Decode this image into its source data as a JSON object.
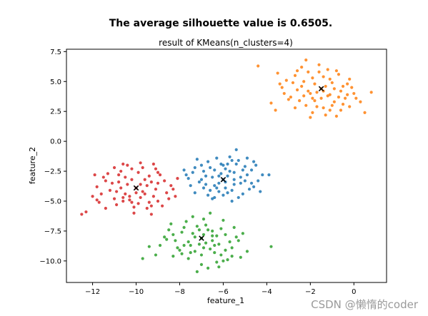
{
  "page": {
    "watermark": "CSDN @懒惰的coder"
  },
  "chart_data": {
    "type": "scatter",
    "suptitle": "The average silhouette value is 0.6505.",
    "title": "result of KMeans(n_clusters=4)",
    "xlabel": "feature_1",
    "ylabel": "feature_2",
    "xlim": [
      -13.2,
      1.5
    ],
    "ylim": [
      -11.8,
      7.7
    ],
    "xticks": [
      -12,
      -10,
      -8,
      -6,
      -4,
      -2,
      0
    ],
    "yticks": [
      -10.0,
      -7.5,
      -5.0,
      -2.5,
      0.0,
      2.5,
      5.0,
      7.5
    ],
    "xtick_labels": [
      "−12",
      "−10",
      "−8",
      "−6",
      "−4",
      "−2",
      "0"
    ],
    "ytick_labels": [
      "−10.0",
      "−7.5",
      "−5.0",
      "−2.5",
      "0.0",
      "2.5",
      "5.0",
      "7.5"
    ],
    "grid": false,
    "legend": "none",
    "series": [
      {
        "color": "#1f77b4",
        "center": [
          -6.0,
          -3.2
        ],
        "points": [
          [
            -6.0,
            -3.2
          ],
          [
            -5.5,
            -2.6
          ],
          [
            -6.4,
            -3.7
          ],
          [
            -5.2,
            -3.5
          ],
          [
            -6.8,
            -2.9
          ],
          [
            -5.8,
            -1.9
          ],
          [
            -6.2,
            -4.2
          ],
          [
            -4.9,
            -2.8
          ],
          [
            -7.1,
            -3.4
          ],
          [
            -5.6,
            -4.1
          ],
          [
            -6.6,
            -2.2
          ],
          [
            -5.3,
            -1.6
          ],
          [
            -4.6,
            -3.8
          ],
          [
            -7.4,
            -2.6
          ],
          [
            -6.1,
            -2.7
          ],
          [
            -5.9,
            -3.9
          ],
          [
            -6.9,
            -3.9
          ],
          [
            -5.1,
            -4.4
          ],
          [
            -7.6,
            -3.1
          ],
          [
            -4.4,
            -3.3
          ],
          [
            -6.3,
            -1.4
          ],
          [
            -5.4,
            -0.7
          ],
          [
            -5.7,
            -1.3
          ],
          [
            -6.5,
            -4.8
          ],
          [
            -7.0,
            -2.0
          ],
          [
            -5.0,
            -2.1
          ],
          [
            -4.7,
            -2.4
          ],
          [
            -6.7,
            -1.7
          ],
          [
            -7.8,
            -2.4
          ],
          [
            -7.3,
            -4.3
          ],
          [
            -5.6,
            -5.0
          ],
          [
            -4.2,
            -2.8
          ],
          [
            -3.9,
            -2.8
          ],
          [
            -6.0,
            -4.5
          ],
          [
            -6.4,
            -2.4
          ],
          [
            -5.2,
            -3.0
          ],
          [
            -5.8,
            -2.9
          ],
          [
            -6.2,
            -3.5
          ],
          [
            -5.5,
            -3.6
          ],
          [
            -6.8,
            -3.6
          ],
          [
            -4.8,
            -4.0
          ],
          [
            -7.2,
            -1.5
          ],
          [
            -6.5,
            -3.0
          ],
          [
            -5.9,
            -2.3
          ],
          [
            -5.3,
            -4.7
          ],
          [
            -6.6,
            -4.1
          ],
          [
            -7.5,
            -3.7
          ],
          [
            -4.5,
            -2.0
          ],
          [
            -5.0,
            -3.3
          ],
          [
            -6.3,
            -3.9
          ],
          [
            -5.7,
            -2.5
          ],
          [
            -6.1,
            -1.9
          ],
          [
            -4.9,
            -1.4
          ],
          [
            -7.7,
            -2.8
          ],
          [
            -6.9,
            -2.5
          ],
          [
            -5.4,
            -1.9
          ],
          [
            -5.8,
            -4.3
          ],
          [
            -4.3,
            -4.2
          ],
          [
            -6.0,
            -2.0
          ],
          [
            -6.7,
            -4.5
          ],
          [
            -5.1,
            -2.4
          ],
          [
            -7.0,
            -3.2
          ],
          [
            -5.5,
            -3.2
          ],
          [
            -6.2,
            -2.9
          ],
          [
            -4.7,
            -3.5
          ],
          [
            -5.9,
            -3.4
          ],
          [
            -6.4,
            -4.7
          ],
          [
            -7.3,
            -2.2
          ],
          [
            -5.6,
            -1.6
          ],
          [
            -4.6,
            -1.7
          ]
        ]
      },
      {
        "color": "#ff7f0e",
        "center": [
          -1.5,
          4.4
        ],
        "points": [
          [
            -1.5,
            4.4
          ],
          [
            -1.0,
            4.9
          ],
          [
            -2.0,
            4.0
          ],
          [
            -1.2,
            3.8
          ],
          [
            -2.3,
            5.0
          ],
          [
            -0.6,
            4.2
          ],
          [
            -1.8,
            3.4
          ],
          [
            -0.9,
            3.3
          ],
          [
            -2.6,
            4.3
          ],
          [
            -0.3,
            4.8
          ],
          [
            -1.4,
            5.4
          ],
          [
            -2.1,
            5.8
          ],
          [
            -0.4,
            3.6
          ],
          [
            -2.9,
            3.7
          ],
          [
            -1.7,
            2.9
          ],
          [
            -1.1,
            2.6
          ],
          [
            -0.2,
            2.9
          ],
          [
            -3.1,
            5.1
          ],
          [
            -2.4,
            6.2
          ],
          [
            -1.6,
            6.4
          ],
          [
            -0.7,
            5.6
          ],
          [
            0.0,
            4.0
          ],
          [
            -3.3,
            4.5
          ],
          [
            -2.7,
            2.8
          ],
          [
            -1.9,
            2.4
          ],
          [
            -1.3,
            2.2
          ],
          [
            -0.5,
            3.1
          ],
          [
            -3.5,
            5.7
          ],
          [
            -2.2,
            6.8
          ],
          [
            0.3,
            3.3
          ],
          [
            0.5,
            2.4
          ],
          [
            0.8,
            4.1
          ],
          [
            -4.4,
            6.3
          ],
          [
            -3.8,
            3.2
          ],
          [
            -2.0,
            2.0
          ],
          [
            -0.8,
            2.1
          ],
          [
            -3.6,
            2.6
          ],
          [
            -1.5,
            3.6
          ],
          [
            -1.3,
            4.6
          ],
          [
            -1.8,
            4.8
          ],
          [
            -0.9,
            4.4
          ],
          [
            -2.5,
            3.4
          ],
          [
            -1.1,
            5.2
          ],
          [
            -2.8,
            4.9
          ],
          [
            -0.2,
            5.2
          ],
          [
            -1.6,
            5.8
          ],
          [
            -2.2,
            3.0
          ],
          [
            -0.6,
            2.6
          ],
          [
            -3.0,
            3.5
          ],
          [
            -1.0,
            3.0
          ],
          [
            -0.1,
            4.5
          ],
          [
            -2.4,
            4.6
          ],
          [
            -1.9,
            5.3
          ],
          [
            -0.3,
            3.9
          ],
          [
            -2.7,
            5.5
          ],
          [
            -3.2,
            4.0
          ],
          [
            -1.4,
            2.8
          ],
          [
            -0.8,
            5.9
          ],
          [
            -2.1,
            4.2
          ],
          [
            -1.2,
            6.0
          ],
          [
            -0.5,
            4.6
          ],
          [
            -1.7,
            4.1
          ],
          [
            -2.6,
            5.9
          ],
          [
            0.1,
            3.6
          ],
          [
            -3.4,
            4.8
          ],
          [
            -1.4,
            4.2
          ],
          [
            -1.1,
            3.9
          ],
          [
            -2.3,
            3.8
          ],
          [
            -0.7,
            3.7
          ],
          [
            -1.9,
            3.6
          ]
        ]
      },
      {
        "color": "#2ca02c",
        "center": [
          -7.0,
          -8.1
        ],
        "points": [
          [
            -7.0,
            -8.1
          ],
          [
            -6.5,
            -7.5
          ],
          [
            -7.5,
            -8.7
          ],
          [
            -6.2,
            -8.6
          ],
          [
            -7.9,
            -7.6
          ],
          [
            -6.8,
            -7.0
          ],
          [
            -7.3,
            -9.2
          ],
          [
            -5.9,
            -7.8
          ],
          [
            -8.2,
            -8.3
          ],
          [
            -6.4,
            -9.3
          ],
          [
            -7.7,
            -6.7
          ],
          [
            -6.0,
            -6.6
          ],
          [
            -5.6,
            -8.9
          ],
          [
            -8.5,
            -7.4
          ],
          [
            -7.1,
            -7.4
          ],
          [
            -6.9,
            -8.9
          ],
          [
            -8.0,
            -9.1
          ],
          [
            -6.1,
            -9.5
          ],
          [
            -8.7,
            -8.0
          ],
          [
            -5.3,
            -8.3
          ],
          [
            -7.4,
            -6.3
          ],
          [
            -6.6,
            -6.0
          ],
          [
            -7.6,
            -9.8
          ],
          [
            -5.8,
            -9.9
          ],
          [
            -8.3,
            -9.6
          ],
          [
            -7.0,
            -10.3
          ],
          [
            -6.3,
            -10.1
          ],
          [
            -6.7,
            -10.6
          ],
          [
            -7.2,
            -10.9
          ],
          [
            -5.5,
            -7.2
          ],
          [
            -5.1,
            -7.7
          ],
          [
            -4.9,
            -9.2
          ],
          [
            -8.9,
            -8.7
          ],
          [
            -9.1,
            -9.5
          ],
          [
            -9.4,
            -8.8
          ],
          [
            -8.4,
            -6.9
          ],
          [
            -7.8,
            -7.2
          ],
          [
            -6.9,
            -6.5
          ],
          [
            -5.2,
            -9.7
          ],
          [
            -6.0,
            -10.0
          ],
          [
            -3.8,
            -8.8
          ],
          [
            -9.7,
            -9.8
          ],
          [
            -6.5,
            -8.3
          ],
          [
            -7.3,
            -8.0
          ],
          [
            -6.8,
            -8.5
          ],
          [
            -7.6,
            -8.4
          ],
          [
            -6.1,
            -7.3
          ],
          [
            -7.0,
            -9.5
          ],
          [
            -6.6,
            -9.0
          ],
          [
            -8.1,
            -8.9
          ],
          [
            -5.7,
            -8.4
          ],
          [
            -7.4,
            -7.7
          ],
          [
            -6.3,
            -7.9
          ],
          [
            -8.6,
            -8.2
          ],
          [
            -6.9,
            -7.8
          ],
          [
            -5.9,
            -9.1
          ],
          [
            -7.8,
            -8.7
          ],
          [
            -7.2,
            -7.1
          ],
          [
            -6.4,
            -8.7
          ],
          [
            -5.4,
            -8.0
          ],
          [
            -8.3,
            -7.8
          ],
          [
            -6.2,
            -10.5
          ],
          [
            -7.5,
            -9.3
          ],
          [
            -6.7,
            -7.4
          ],
          [
            -5.6,
            -9.6
          ],
          [
            -7.1,
            -8.6
          ],
          [
            -6.5,
            -7.9
          ],
          [
            -7.9,
            -9.4
          ]
        ]
      },
      {
        "color": "#d62728",
        "center": [
          -10.0,
          -3.9
        ],
        "points": [
          [
            -10.0,
            -3.9
          ],
          [
            -9.6,
            -3.2
          ],
          [
            -10.5,
            -4.4
          ],
          [
            -9.2,
            -4.6
          ],
          [
            -10.8,
            -3.4
          ],
          [
            -9.9,
            -2.6
          ],
          [
            -10.3,
            -4.9
          ],
          [
            -9.0,
            -3.5
          ],
          [
            -11.2,
            -4.1
          ],
          [
            -9.4,
            -5.1
          ],
          [
            -10.7,
            -2.5
          ],
          [
            -9.1,
            -2.3
          ],
          [
            -8.6,
            -4.3
          ],
          [
            -11.5,
            -3.0
          ],
          [
            -10.2,
            -3.2
          ],
          [
            -9.7,
            -4.2
          ],
          [
            -11.0,
            -4.8
          ],
          [
            -9.3,
            -5.4
          ],
          [
            -11.8,
            -3.8
          ],
          [
            -8.4,
            -3.7
          ],
          [
            -10.4,
            -2.0
          ],
          [
            -9.8,
            -1.8
          ],
          [
            -10.9,
            -5.3
          ],
          [
            -9.5,
            -5.6
          ],
          [
            -11.4,
            -5.6
          ],
          [
            -10.1,
            -6.0
          ],
          [
            -9.3,
            -6.1
          ],
          [
            -12.0,
            -4.6
          ],
          [
            -12.5,
            -6.1
          ],
          [
            -12.3,
            -5.9
          ],
          [
            -11.7,
            -5.1
          ],
          [
            -11.9,
            -2.8
          ],
          [
            -8.9,
            -2.8
          ],
          [
            -8.1,
            -3.1
          ],
          [
            -8.2,
            -4.6
          ],
          [
            -8.8,
            -5.4
          ],
          [
            -10.6,
            -1.9
          ],
          [
            -9.2,
            -1.9
          ],
          [
            -10.0,
            -4.3
          ],
          [
            -9.5,
            -3.7
          ],
          [
            -10.4,
            -3.6
          ],
          [
            -9.8,
            -4.7
          ],
          [
            -10.9,
            -4.2
          ],
          [
            -9.1,
            -4.0
          ],
          [
            -11.1,
            -3.5
          ],
          [
            -10.6,
            -5.0
          ],
          [
            -9.4,
            -2.9
          ],
          [
            -10.2,
            -2.3
          ],
          [
            -8.7,
            -3.3
          ],
          [
            -11.6,
            -4.4
          ],
          [
            -9.9,
            -5.2
          ],
          [
            -10.8,
            -2.8
          ],
          [
            -9.0,
            -5.0
          ],
          [
            -11.3,
            -2.7
          ],
          [
            -10.3,
            -4.6
          ],
          [
            -9.6,
            -4.4
          ],
          [
            -10.7,
            -3.9
          ],
          [
            -8.5,
            -4.8
          ],
          [
            -11.8,
            -4.9
          ],
          [
            -9.7,
            -2.2
          ],
          [
            -10.5,
            -3.0
          ],
          [
            -9.3,
            -3.4
          ],
          [
            -10.1,
            -5.5
          ],
          [
            -11.0,
            -2.2
          ],
          [
            -9.0,
            -2.6
          ],
          [
            -8.3,
            -4.0
          ],
          [
            -10.6,
            -4.7
          ],
          [
            -9.8,
            -3.6
          ],
          [
            -11.4,
            -3.3
          ],
          [
            -10.2,
            -5.1
          ]
        ]
      }
    ]
  }
}
